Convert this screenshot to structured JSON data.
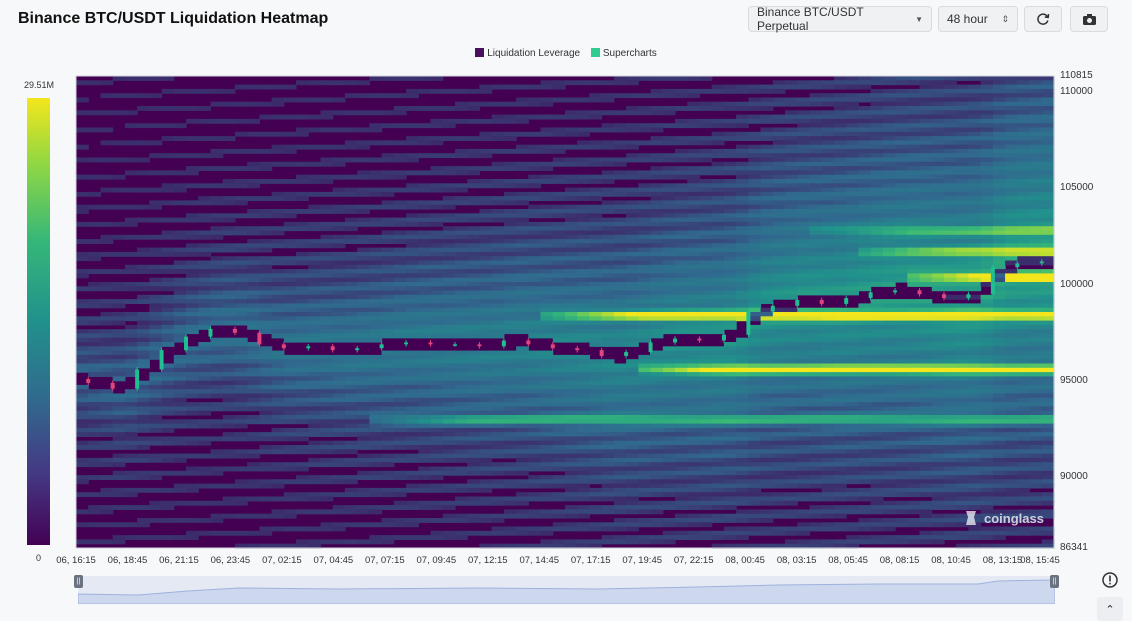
{
  "header": {
    "title": "Binance BTC/USDT Liquidation Heatmap",
    "pair_select": "Binance BTC/USDT Perpetual",
    "range_select": "48 hour",
    "refresh_icon": "refresh-icon",
    "camera_icon": "camera-icon"
  },
  "legend": [
    {
      "label": "Liquidation Leverage",
      "color": "#4a1060"
    },
    {
      "label": "Supercharts",
      "color": "#2ecc8f"
    }
  ],
  "colorbar": {
    "max_label": "29.51M",
    "min_label": "0"
  },
  "watermark": "coinglass",
  "chart_data": {
    "type": "heatmap",
    "title": "Binance BTC/USDT Liquidation Heatmap",
    "x_ticks": [
      "06, 16:15",
      "06, 18:45",
      "06, 21:15",
      "06, 23:45",
      "07, 02:15",
      "07, 04:45",
      "07, 07:15",
      "07, 09:45",
      "07, 12:15",
      "07, 14:45",
      "07, 17:15",
      "07, 19:45",
      "07, 22:15",
      "08, 00:45",
      "08, 03:15",
      "08, 05:45",
      "08, 08:15",
      "08, 10:45",
      "08, 13:15",
      "08, 15:45"
    ],
    "y_ticks": [
      "110815",
      "110000",
      "105000",
      "100000",
      "95000",
      "90000",
      "86341"
    ],
    "ylim": [
      86341,
      110815
    ],
    "color_scale": {
      "min": 0,
      "max": 29510000,
      "colors": [
        "#440154",
        "#31688e",
        "#21918c",
        "#35b779",
        "#8fd744",
        "#f3e61c"
      ]
    },
    "price_series": [
      {
        "t": 0,
        "p": 95100
      },
      {
        "t": 1,
        "p": 94900
      },
      {
        "t": 2,
        "p": 94600
      },
      {
        "t": 3,
        "p": 95600
      },
      {
        "t": 4,
        "p": 96600
      },
      {
        "t": 5,
        "p": 97300
      },
      {
        "t": 6,
        "p": 97700
      },
      {
        "t": 7,
        "p": 97500
      },
      {
        "t": 8,
        "p": 96900
      },
      {
        "t": 9,
        "p": 96700
      },
      {
        "t": 10,
        "p": 96800
      },
      {
        "t": 11,
        "p": 96600
      },
      {
        "t": 12,
        "p": 96700
      },
      {
        "t": 13,
        "p": 96900
      },
      {
        "t": 14,
        "p": 97000
      },
      {
        "t": 15,
        "p": 96900
      },
      {
        "t": 16,
        "p": 96900
      },
      {
        "t": 17,
        "p": 96800
      },
      {
        "t": 18,
        "p": 97100
      },
      {
        "t": 19,
        "p": 96900
      },
      {
        "t": 20,
        "p": 96700
      },
      {
        "t": 21,
        "p": 96600
      },
      {
        "t": 22,
        "p": 96300
      },
      {
        "t": 23,
        "p": 96500
      },
      {
        "t": 24,
        "p": 97000
      },
      {
        "t": 25,
        "p": 97200
      },
      {
        "t": 26,
        "p": 97100
      },
      {
        "t": 27,
        "p": 97400
      },
      {
        "t": 28,
        "p": 98600
      },
      {
        "t": 29,
        "p": 98900
      },
      {
        "t": 30,
        "p": 99200
      },
      {
        "t": 31,
        "p": 99000
      },
      {
        "t": 32,
        "p": 99300
      },
      {
        "t": 33,
        "p": 99600
      },
      {
        "t": 34,
        "p": 99700
      },
      {
        "t": 35,
        "p": 99500
      },
      {
        "t": 36,
        "p": 99300
      },
      {
        "t": 37,
        "p": 99500
      },
      {
        "t": 38,
        "p": 100900
      },
      {
        "t": 39,
        "p": 101100
      },
      {
        "t": 40,
        "p": 101200
      }
    ],
    "liquidation_bands": [
      {
        "price": 95600,
        "intensity": 1.0,
        "from_t": 23
      },
      {
        "price": 98400,
        "intensity": 0.9,
        "from_t": 19
      },
      {
        "price": 100400,
        "intensity": 0.85,
        "from_t": 34
      },
      {
        "price": 101700,
        "intensity": 0.55,
        "from_t": 32
      },
      {
        "price": 93000,
        "intensity": 0.45,
        "from_t": 12
      },
      {
        "price": 102800,
        "intensity": 0.4,
        "from_t": 30
      }
    ]
  }
}
